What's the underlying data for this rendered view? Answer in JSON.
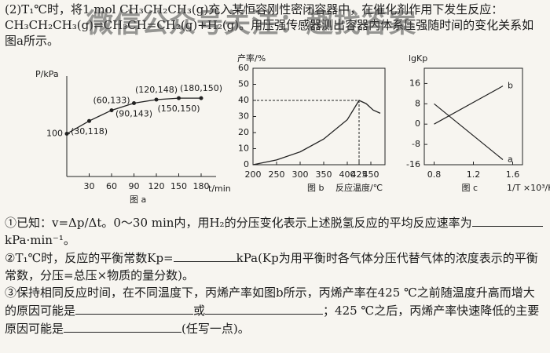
{
  "watermark": "微信公众号关注：趣找答案",
  "intro": "(2)T₁℃时，将1 mol CH₃CH₂CH₃(g)充入某恒容刚性密闭容器中，在催化剂作用下发生反应：CH₃CH₂CH₃(g)⇌CH₃CH=CH₂(g)+H₂(g)。用压强传感器测出容器内体系压强随时间的变化关系如图a所示。",
  "figures": [
    {
      "type": "line",
      "caption": "图 a",
      "ylabel": "P/kPa",
      "xlabel": "t/min",
      "x": [
        0,
        30,
        60,
        90,
        120,
        150,
        180
      ],
      "values": [
        100,
        118,
        133,
        143,
        148,
        150,
        150
      ],
      "point_labels": [
        null,
        "(30,118)",
        "(60,133)",
        "(90,143)",
        "(120,148)",
        "(150,150)",
        "(180,150)"
      ],
      "xlim": [
        0,
        200
      ],
      "ylim": [
        40,
        170
      ],
      "xticks": [
        30,
        60,
        90,
        120,
        150,
        180
      ],
      "yticks": [
        100
      ],
      "color": "#222"
    },
    {
      "type": "curve",
      "caption": "图 b",
      "ylabel": "产率/%",
      "xlabel": "反应温度/℃",
      "x": [
        200,
        250,
        300,
        350,
        400,
        425,
        440,
        455,
        470
      ],
      "values": [
        0,
        3,
        8,
        16,
        28,
        40,
        38,
        34,
        32
      ],
      "xlim": [
        200,
        480
      ],
      "ylim": [
        0,
        60
      ],
      "xticks": [
        200,
        250,
        300,
        350,
        400,
        425,
        450
      ],
      "yticks": [
        0,
        10,
        20,
        30,
        40,
        50,
        60
      ],
      "marker": [
        425,
        40
      ],
      "color": "#222"
    },
    {
      "type": "lines",
      "caption": "图 c",
      "ylabel": "lgKp",
      "xlabel": "1/T ×10³/K⁻¹",
      "xlim": [
        0.7,
        1.7
      ],
      "ylim": [
        -16,
        22
      ],
      "xticks": [
        0.8,
        1.2,
        1.6
      ],
      "yticks": [
        16,
        8,
        0,
        -8,
        -16
      ],
      "series": [
        {
          "name": "a",
          "x": [
            0.8,
            1.5
          ],
          "values": [
            8,
            -14
          ]
        },
        {
          "name": "b",
          "x": [
            0.8,
            1.5
          ],
          "values": [
            0,
            15
          ]
        }
      ],
      "color": "#222"
    }
  ],
  "questions": [
    [
      "①已知：v=Δp/Δt。0～30 min内，用H₂的分压变化表示上述脱氢反应的平均反应速率为",
      "kPa·min⁻¹。"
    ],
    [
      "②T₁℃时，反应的平衡常数Kp=",
      "kPa(Kp为用平衡时各气体分压代替气体的浓度表示的平衡常数，分压=总压×物质的量分数)。"
    ],
    [
      "③保持相同反应时间，在不同温度下，丙烯产率如图b所示，丙烯产率在425 ℃之前随温度升高而增大的原因可能是",
      "或",
      "；425 ℃之后，丙烯产率快速降低的主要原因可能是",
      "(任写一点)。"
    ]
  ]
}
